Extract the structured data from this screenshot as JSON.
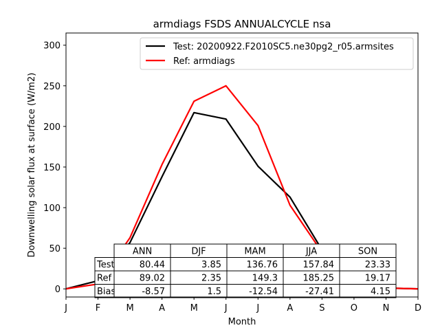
{
  "chart_data": {
    "type": "line",
    "title": "armdiags FSDS ANNUALCYCLE nsa",
    "xlabel": "Month",
    "ylabel": "Downwelling solar flux at surface (W/m2)",
    "categories": [
      "J",
      "F",
      "M",
      "A",
      "M",
      "J",
      "J",
      "A",
      "S",
      "O",
      "N",
      "D"
    ],
    "xlim": [
      0,
      11
    ],
    "ylim": [
      -10,
      315
    ],
    "yticks": [
      0,
      50,
      100,
      150,
      200,
      250,
      300
    ],
    "grid": false,
    "legend_position": "top-right",
    "series": [
      {
        "name": "Test: 20200922.F2010SC5.ne30pg2_r05.armsites",
        "color": "#000000",
        "values": [
          0.1,
          10,
          57,
          138,
          217,
          209,
          151,
          113,
          48,
          20,
          1,
          0.1
        ]
      },
      {
        "name": "Ref: armdiags",
        "color": "#ff0000",
        "values": [
          0.1,
          6,
          63,
          153,
          231,
          250,
          201,
          103,
          45,
          12,
          1,
          0.1
        ]
      }
    ],
    "table": {
      "col_labels": [
        "ANN",
        "DJF",
        "MAM",
        "JJA",
        "SON"
      ],
      "row_labels": [
        "Test",
        "Ref",
        "Bias"
      ],
      "cells": [
        [
          "80.44",
          "3.85",
          "136.76",
          "157.84",
          "23.33"
        ],
        [
          "89.02",
          "2.35",
          "149.3",
          "185.25",
          "19.17"
        ],
        [
          "-8.57",
          "1.5",
          "-12.54",
          "-27.41",
          "4.15"
        ]
      ]
    }
  }
}
